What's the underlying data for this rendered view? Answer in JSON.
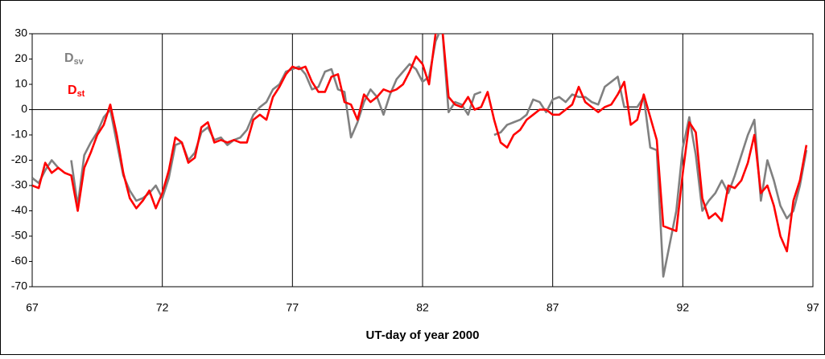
{
  "chart_data": {
    "type": "line",
    "x_label": "UT-day of year 2000",
    "x": [
      67,
      67.25,
      67.5,
      67.75,
      68,
      68.25,
      68.5,
      68.75,
      69,
      69.25,
      69.5,
      69.75,
      70,
      70.25,
      70.5,
      70.75,
      71,
      71.25,
      71.5,
      71.75,
      72,
      72.25,
      72.5,
      72.75,
      73,
      73.25,
      73.5,
      73.75,
      74,
      74.25,
      74.5,
      74.75,
      75,
      75.25,
      75.5,
      75.75,
      76,
      76.25,
      76.5,
      76.75,
      77,
      77.25,
      77.5,
      77.75,
      78,
      78.25,
      78.5,
      78.75,
      79,
      79.25,
      79.5,
      79.75,
      80,
      80.25,
      80.5,
      80.75,
      81,
      81.25,
      81.5,
      81.75,
      82,
      82.25,
      82.5,
      82.75,
      83,
      83.25,
      83.5,
      83.75,
      84,
      84.25,
      84.5,
      84.75,
      85,
      85.25,
      85.5,
      85.75,
      86,
      86.25,
      86.5,
      86.75,
      87,
      87.25,
      87.5,
      87.75,
      88,
      88.25,
      88.5,
      88.75,
      89,
      89.25,
      89.5,
      89.75,
      90,
      90.25,
      90.5,
      90.75,
      91,
      91.25,
      91.5,
      91.75,
      92,
      92.25,
      92.5,
      92.75,
      93,
      93.25,
      93.5,
      93.75,
      94,
      94.25,
      94.5,
      94.75,
      95,
      95.25,
      95.5,
      95.75,
      96,
      96.25,
      96.5,
      96.75
    ],
    "series": [
      {
        "name": "Dsv",
        "color": "#808080",
        "values": [
          -27,
          -29,
          -24,
          -20,
          -23,
          null,
          -20,
          -38,
          -18,
          -13,
          -9,
          -3,
          0,
          -13,
          -26,
          -32,
          -36,
          -35,
          -33,
          -30,
          -35,
          -27,
          -14,
          -13,
          -20,
          -17,
          -9,
          -7,
          -12,
          -11,
          -14,
          -12,
          -11,
          -8,
          -2,
          1,
          3,
          8,
          10,
          15,
          16,
          17,
          14,
          8,
          9,
          15,
          16,
          8,
          7,
          -11,
          -5,
          3,
          8,
          5,
          -2,
          6,
          12,
          15,
          18,
          16,
          11,
          13,
          27,
          33,
          -1,
          3,
          2,
          -2,
          6,
          7,
          null,
          -10,
          -9,
          -6,
          -5,
          -4,
          -2,
          4,
          3,
          -1,
          4,
          5,
          3,
          6,
          5,
          5,
          3,
          2,
          9,
          11,
          13,
          1,
          1,
          1,
          5,
          -15,
          -16,
          -66,
          -53,
          -40,
          -15,
          -3,
          -18,
          -40,
          -36,
          -33,
          -28,
          -33,
          -26,
          -18,
          -10,
          -4,
          -36,
          -20,
          -28,
          -38,
          -43,
          -40,
          -30,
          -16
        ]
      },
      {
        "name": "Dst",
        "color": "#ff0000",
        "values": [
          -30,
          -31,
          -21,
          -25,
          -23,
          -25,
          -26,
          -40,
          -23,
          -17,
          -10,
          -6,
          2,
          -10,
          -25,
          -35,
          -39,
          -36,
          -32,
          -39,
          -33,
          -24,
          -11,
          -13,
          -21,
          -19,
          -7,
          -5,
          -13,
          -12,
          -13,
          -12,
          -13,
          -13,
          -4,
          -2,
          -4,
          5,
          9,
          14,
          17,
          16,
          17,
          11,
          7,
          7,
          13,
          14,
          3,
          2,
          -4,
          6,
          3,
          5,
          8,
          7,
          8,
          10,
          15,
          21,
          18,
          10,
          30,
          33,
          5,
          2,
          1,
          5,
          0,
          1,
          7,
          -4,
          -13,
          -15,
          -10,
          -8,
          -4,
          -2,
          0,
          0,
          -2,
          -2,
          0,
          2,
          9,
          3,
          1,
          -1,
          1,
          2,
          6,
          11,
          -6,
          -4,
          6,
          -3,
          -12,
          -46,
          -47,
          -48,
          -25,
          -5,
          -9,
          -35,
          -43,
          -41,
          -44,
          -30,
          -31,
          -28,
          -21,
          -10,
          -33,
          -30,
          -38,
          -50,
          -56,
          -36,
          -28,
          -14
        ]
      }
    ],
    "xlim": [
      67,
      97
    ],
    "xticks": [
      67,
      72,
      77,
      82,
      87,
      92,
      97
    ],
    "ylim": [
      -70,
      30
    ],
    "yticks": [
      -70,
      -60,
      -50,
      -40,
      -30,
      -20,
      -10,
      0,
      10,
      20,
      30
    ],
    "grid": true
  }
}
